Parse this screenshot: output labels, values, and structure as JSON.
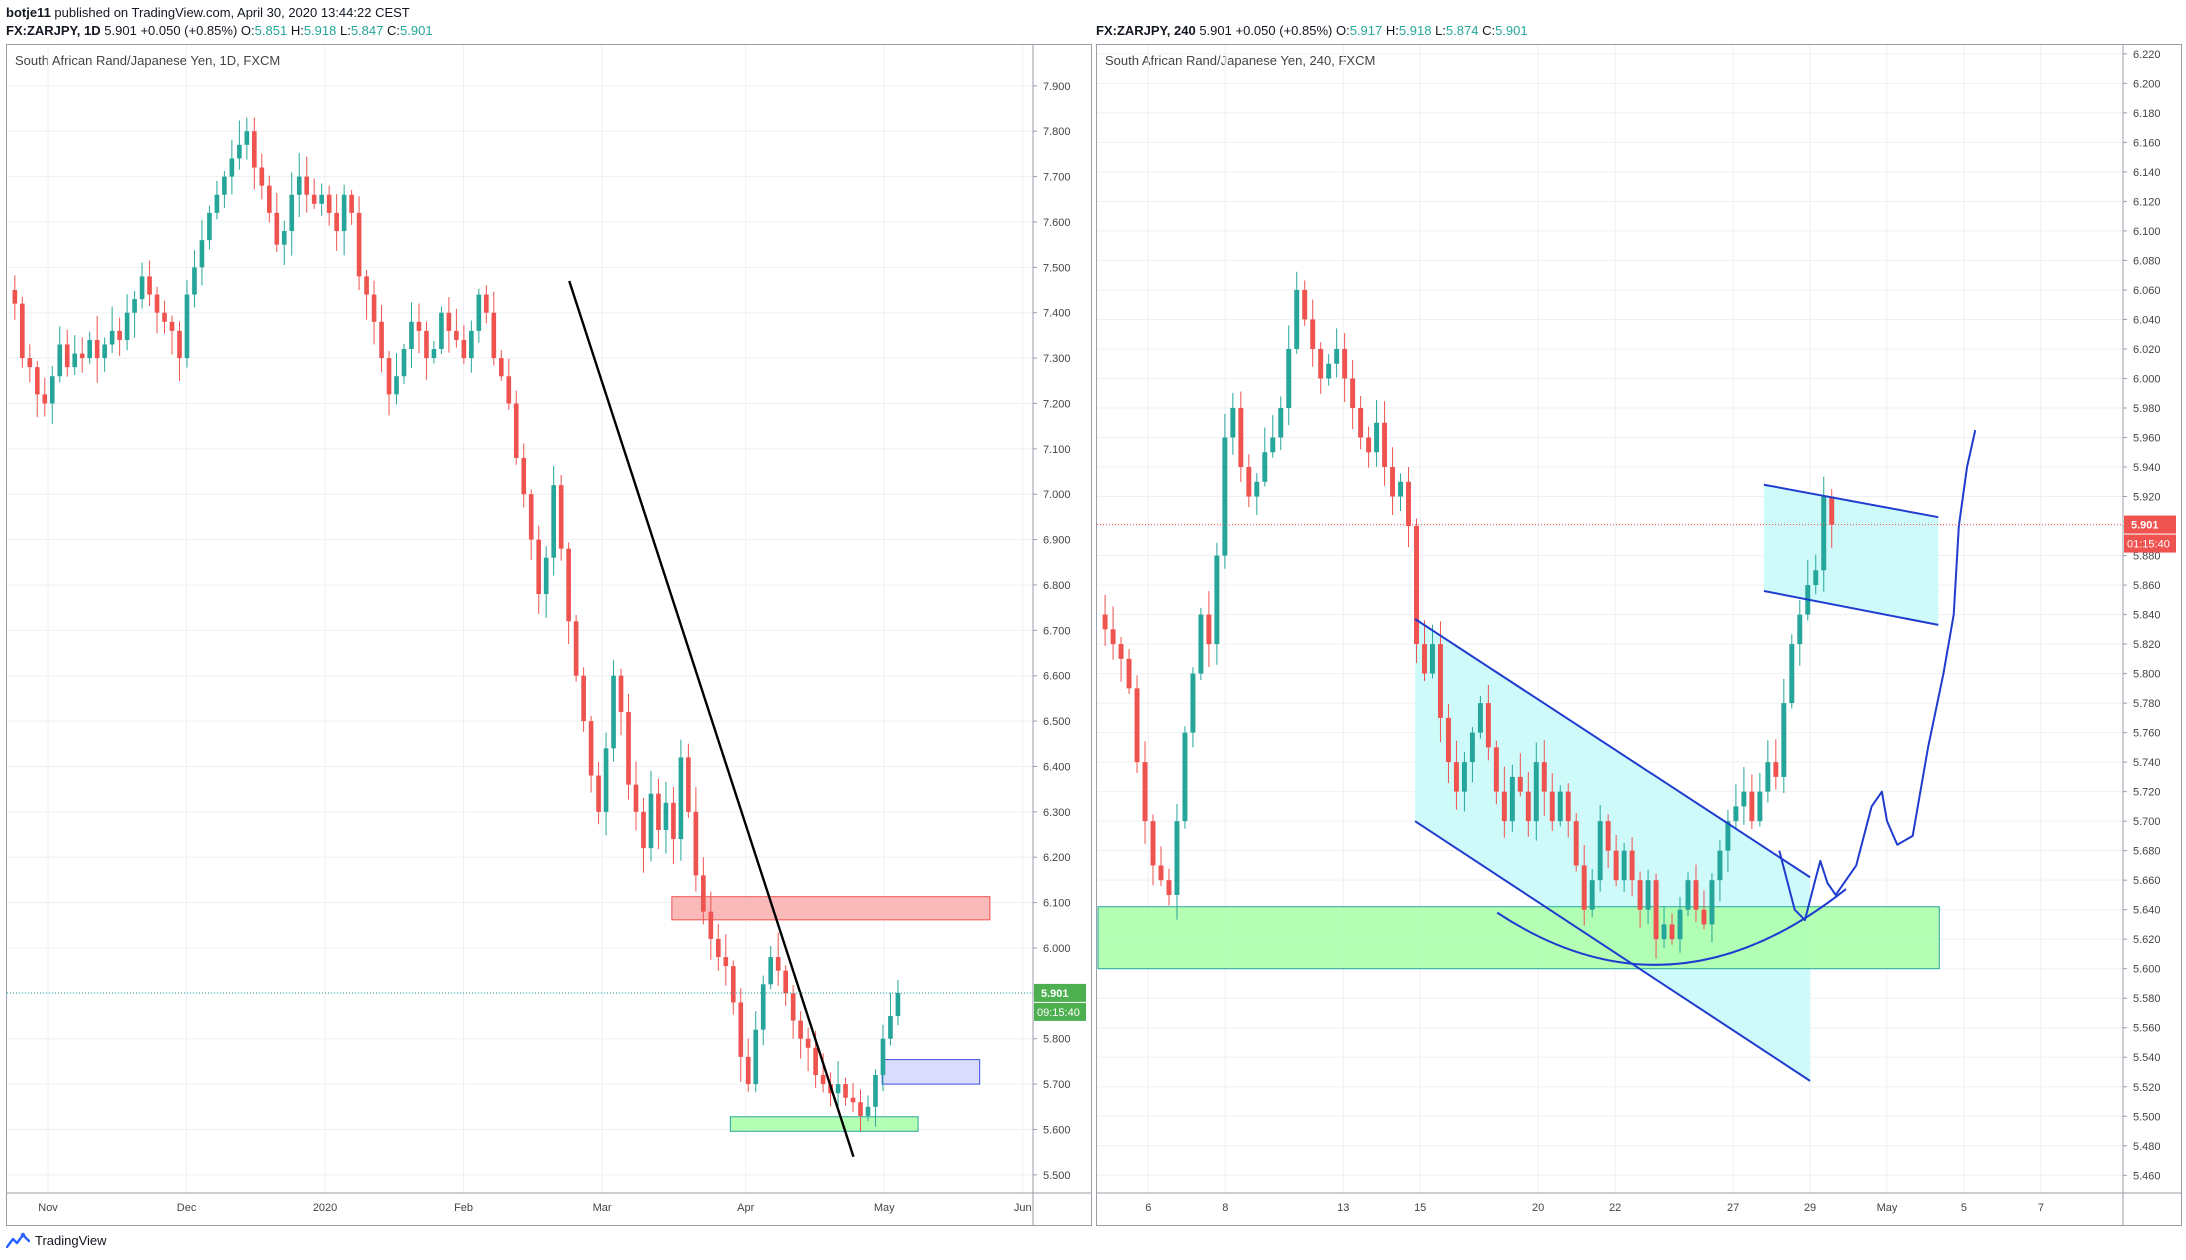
{
  "header": {
    "user": "botje11",
    "published": "published on TradingView.com, April 30, 2020 13:44:22 CEST"
  },
  "left": {
    "ohlc": {
      "symbol": "FX:ZARJPY, 1D",
      "last": "5.901",
      "change": "+0.050 (+0.85%)",
      "o_label": "O:",
      "o": "5.851",
      "h_label": "H:",
      "h": "5.918",
      "l_label": "L:",
      "l": "5.847",
      "c_label": "C:",
      "c": "5.901"
    },
    "title": "South African Rand/Japanese Yen, 1D, FXCM",
    "price_tag": "5.901",
    "timer_tag": "09:15:40"
  },
  "right": {
    "ohlc": {
      "symbol": "FX:ZARJPY, 240",
      "last": "5.901",
      "change": "+0.050 (+0.85%)",
      "o_label": "O:",
      "o": "5.917",
      "h_label": "H:",
      "h": "5.918",
      "l_label": "L:",
      "l": "5.874",
      "c_label": "C:",
      "c": "5.901"
    },
    "title": "South African Rand/Japanese Yen, 240, FXCM",
    "price_tag": "5.901",
    "timer_tag": "01:15:40"
  },
  "brand": "TradingView",
  "colors": {
    "up": "#26a69a",
    "down": "#ef5350",
    "grid": "#eef0f3",
    "tag_up": "#4caf50",
    "tag_down": "#ef5350"
  },
  "chart_data": [
    {
      "type": "candlestick",
      "symbol": "FX:ZARJPY",
      "interval": "1D",
      "y_ticks": [
        7.9,
        7.8,
        7.7,
        7.6,
        7.5,
        7.4,
        7.3,
        7.2,
        7.1,
        7.0,
        6.9,
        6.8,
        6.7,
        6.6,
        6.5,
        6.4,
        6.3,
        6.2,
        6.1,
        6.0,
        5.9,
        5.8,
        5.7,
        5.6,
        5.5
      ],
      "y_tick_labels": [
        "7.900",
        "7.800",
        "7.700",
        "7.600",
        "7.500",
        "7.400",
        "7.300",
        "7.200",
        "7.100",
        "7.000",
        "6.900",
        "6.800",
        "6.700",
        "6.600",
        "6.500",
        "6.400",
        "6.300",
        "6.200",
        "6.100",
        "6.000",
        "5.900",
        "5.800",
        "5.700",
        "5.600",
        "5.500"
      ],
      "ylim": [
        5.46,
        7.99
      ],
      "x_ticks": [
        "Nov",
        "Dec",
        "2020",
        "Feb",
        "Mar",
        "Apr",
        "May",
        "Jun"
      ],
      "x_tick_pos": [
        0.04,
        0.175,
        0.31,
        0.445,
        0.58,
        0.72,
        0.855,
        0.99
      ],
      "last_price": 5.901,
      "close_path": [
        7.42,
        7.3,
        7.28,
        7.22,
        7.2,
        7.26,
        7.33,
        7.28,
        7.31,
        7.3,
        7.34,
        7.3,
        7.33,
        7.36,
        7.34,
        7.4,
        7.43,
        7.48,
        7.44,
        7.4,
        7.38,
        7.36,
        7.3,
        7.44,
        7.5,
        7.56,
        7.62,
        7.66,
        7.7,
        7.74,
        7.77,
        7.8,
        7.72,
        7.68,
        7.62,
        7.55,
        7.58,
        7.66,
        7.7,
        7.66,
        7.64,
        7.66,
        7.62,
        7.58,
        7.66,
        7.62,
        7.48,
        7.44,
        7.38,
        7.3,
        7.22,
        7.26,
        7.32,
        7.38,
        7.36,
        7.3,
        7.32,
        7.4,
        7.36,
        7.34,
        7.3,
        7.36,
        7.44,
        7.4,
        7.3,
        7.26,
        7.2,
        7.08,
        7.0,
        6.9,
        6.78,
        6.86,
        7.02,
        6.88,
        6.72,
        6.6,
        6.5,
        6.38,
        6.3,
        6.44,
        6.6,
        6.52,
        6.36,
        6.3,
        6.22,
        6.34,
        6.26,
        6.32,
        6.24,
        6.42,
        6.3,
        6.16,
        6.08,
        6.02,
        5.98,
        5.96,
        5.88,
        5.76,
        5.7,
        5.82,
        5.92,
        5.98,
        5.95,
        5.9,
        5.84,
        5.8,
        5.78,
        5.72,
        5.7,
        5.68,
        5.7,
        5.67,
        5.66,
        5.63,
        5.65,
        5.72,
        5.8,
        5.85,
        5.901
      ],
      "trendlines": [
        {
          "from": [
            0.548,
            7.47
          ],
          "to": [
            0.825,
            5.54
          ],
          "color": "#000000"
        }
      ],
      "zones": [
        {
          "x": [
            0.648,
            0.958
          ],
          "y": [
            6.062,
            6.113
          ],
          "fill": "#f9b2b2",
          "stroke": "#ef5350"
        },
        {
          "x": [
            0.853,
            0.948
          ],
          "y": [
            5.7,
            5.754
          ],
          "fill": "#d6d8ff",
          "stroke": "#3c50e6"
        },
        {
          "x": [
            0.705,
            0.888
          ],
          "y": [
            5.596,
            5.628
          ],
          "fill": "#adffad",
          "stroke": "#26a69a"
        }
      ]
    },
    {
      "type": "candlestick",
      "symbol": "FX:ZARJPY",
      "interval": "240",
      "y_ticks": [
        6.22,
        6.2,
        6.18,
        6.16,
        6.14,
        6.12,
        6.1,
        6.08,
        6.06,
        6.04,
        6.02,
        6.0,
        5.98,
        5.96,
        5.94,
        5.92,
        5.9,
        5.88,
        5.86,
        5.84,
        5.82,
        5.8,
        5.78,
        5.76,
        5.74,
        5.72,
        5.7,
        5.68,
        5.66,
        5.64,
        5.62,
        5.6,
        5.58,
        5.56,
        5.54,
        5.52,
        5.5,
        5.48,
        5.46
      ],
      "y_tick_labels": [
        "6.220",
        "6.200",
        "6.180",
        "6.160",
        "6.140",
        "6.120",
        "6.100",
        "6.080",
        "6.060",
        "6.040",
        "6.020",
        "6.000",
        "5.980",
        "5.960",
        "5.940",
        "5.920",
        "5.900",
        "5.880",
        "5.860",
        "5.840",
        "5.820",
        "5.800",
        "5.780",
        "5.760",
        "5.740",
        "5.720",
        "5.700",
        "5.680",
        "5.660",
        "5.640",
        "5.620",
        "5.600",
        "5.580",
        "5.560",
        "5.540",
        "5.520",
        "5.500",
        "5.480",
        "5.460"
      ],
      "ylim": [
        5.448,
        6.226
      ],
      "x_ticks": [
        "6",
        "8",
        "13",
        "15",
        "20",
        "22",
        "27",
        "29",
        "May",
        "5",
        "7"
      ],
      "x_tick_pos": [
        0.05,
        0.125,
        0.24,
        0.315,
        0.43,
        0.505,
        0.62,
        0.695,
        0.77,
        0.845,
        0.92
      ],
      "last_price": 5.901,
      "close_path": [
        5.83,
        5.82,
        5.81,
        5.79,
        5.74,
        5.7,
        5.67,
        5.66,
        5.65,
        5.7,
        5.76,
        5.8,
        5.84,
        5.82,
        5.88,
        5.96,
        5.98,
        5.94,
        5.92,
        5.93,
        5.95,
        5.96,
        5.98,
        6.02,
        6.06,
        6.04,
        6.02,
        6.0,
        6.01,
        6.02,
        6.0,
        5.98,
        5.96,
        5.95,
        5.97,
        5.94,
        5.92,
        5.93,
        5.9,
        5.82,
        5.8,
        5.82,
        5.77,
        5.74,
        5.72,
        5.74,
        5.76,
        5.78,
        5.75,
        5.72,
        5.7,
        5.73,
        5.72,
        5.7,
        5.74,
        5.72,
        5.7,
        5.72,
        5.7,
        5.67,
        5.64,
        5.66,
        5.7,
        5.68,
        5.66,
        5.68,
        5.66,
        5.64,
        5.66,
        5.62,
        5.63,
        5.62,
        5.64,
        5.66,
        5.64,
        5.63,
        5.66,
        5.68,
        5.7,
        5.71,
        5.72,
        5.7,
        5.72,
        5.74,
        5.73,
        5.78,
        5.82,
        5.84,
        5.86,
        5.87,
        5.92,
        5.901
      ],
      "channels": [
        {
          "upper": [
            [
              0.31,
              5.837
            ],
            [
              0.695,
              5.662
            ]
          ],
          "lower": [
            [
              0.31,
              5.7
            ],
            [
              0.695,
              5.524
            ]
          ],
          "fill": "#ccfafa"
        },
        {
          "upper": [
            [
              0.65,
              5.928
            ],
            [
              0.82,
              5.906
            ]
          ],
          "lower": [
            [
              0.65,
              5.856
            ],
            [
              0.82,
              5.833
            ]
          ],
          "fill": "#ccfafa"
        }
      ],
      "zones": [
        {
          "x": [
            0.0,
            0.82
          ],
          "y": [
            5.6,
            5.642
          ],
          "fill": "#adffad",
          "stroke": "#26a69a"
        }
      ]
    }
  ]
}
